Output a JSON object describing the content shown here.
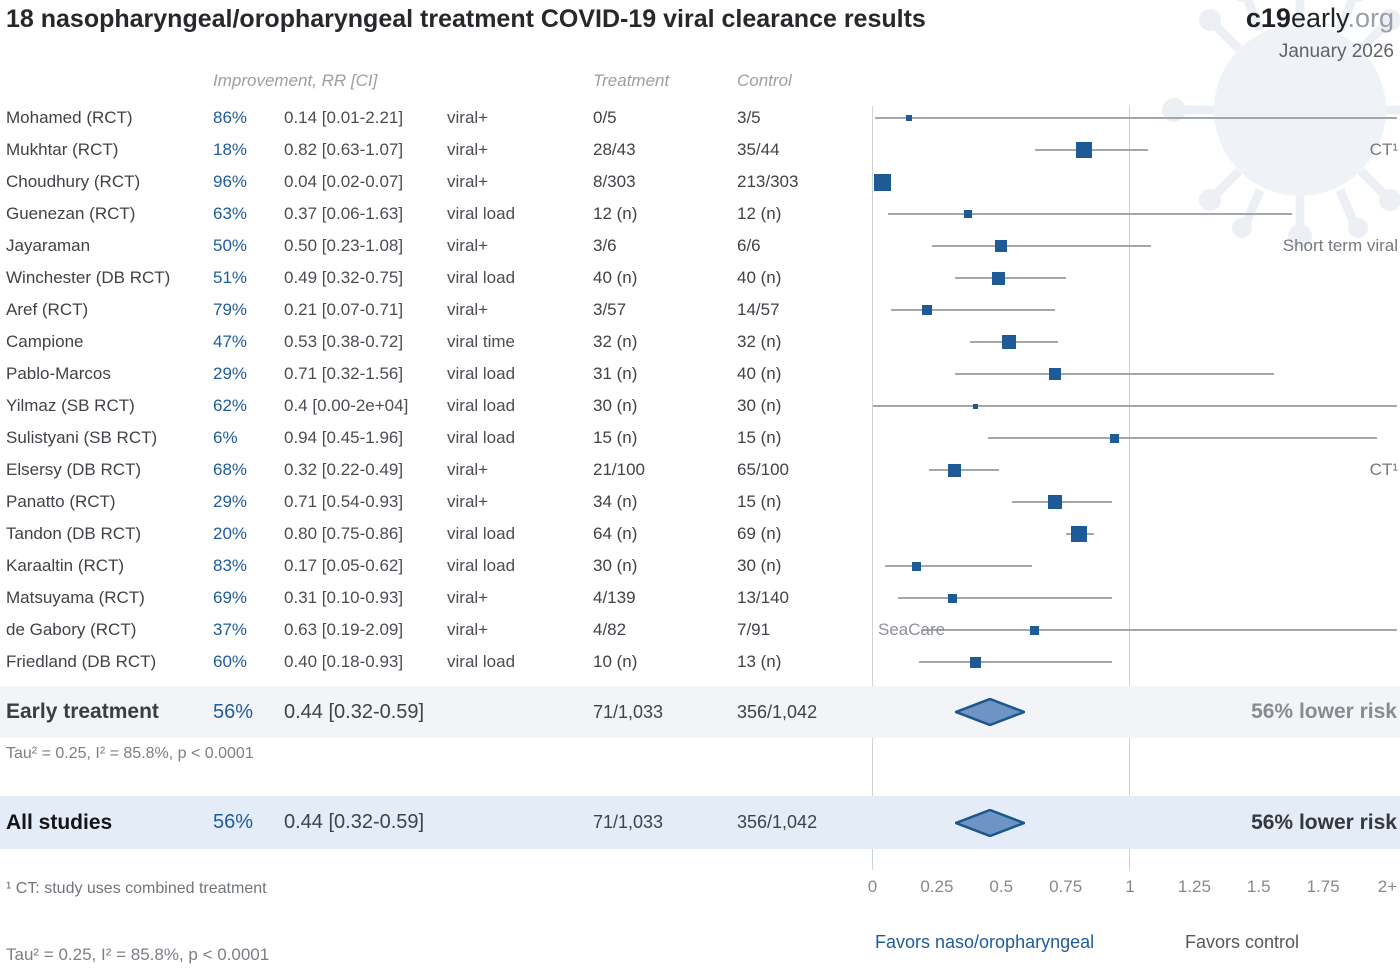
{
  "header": {
    "title": "18 nasopharyngeal/oropharyngeal treatment COVID-19 viral clearance results",
    "logo_bold": "c19",
    "logo_mid": "early",
    "logo_suffix": ".org",
    "date": "January 2026"
  },
  "columns": {
    "improvement": "Improvement, RR [CI]",
    "treatment": "Treatment",
    "control": "Control"
  },
  "chart_data": {
    "type": "forest",
    "x_axis": {
      "ticks": [
        "0",
        "0.25",
        "0.5",
        "0.75",
        "1",
        "1.25",
        "1.5",
        "1.75",
        "2+"
      ],
      "values": [
        0,
        0.25,
        0.5,
        0.75,
        1,
        1.25,
        1.5,
        1.75,
        2
      ],
      "xlim": [
        0,
        2.04
      ],
      "reference_lines": [
        0,
        1
      ]
    },
    "studies": [
      {
        "name": "Mohamed (RCT)",
        "improvement": "86%",
        "rr": "0.14 [0.01-2.21]",
        "outcome": "viral+",
        "treatment": "0/5",
        "control": "3/5",
        "rr_val": 0.14,
        "ci": [
          0.01,
          2.21
        ],
        "marker_size": 6
      },
      {
        "name": "Mukhtar (RCT)",
        "improvement": "18%",
        "rr": "0.82 [0.63-1.07]",
        "outcome": "viral+",
        "treatment": "28/43",
        "control": "35/44",
        "rr_val": 0.82,
        "ci": [
          0.63,
          1.07
        ],
        "marker_size": 16,
        "note": "CT¹",
        "note_side": "right"
      },
      {
        "name": "Choudhury (RCT)",
        "improvement": "96%",
        "rr": "0.04 [0.02-0.07]",
        "outcome": "viral+",
        "treatment": "8/303",
        "control": "213/303",
        "rr_val": 0.04,
        "ci": [
          0.02,
          0.07
        ],
        "marker_size": 17
      },
      {
        "name": "Guenezan (RCT)",
        "improvement": "63%",
        "rr": "0.37 [0.06-1.63]",
        "outcome": "viral load",
        "treatment": "12 (n)",
        "control": "12 (n)",
        "rr_val": 0.37,
        "ci": [
          0.06,
          1.63
        ],
        "marker_size": 8
      },
      {
        "name": "Jayaraman",
        "improvement": "50%",
        "rr": "0.50 [0.23-1.08]",
        "outcome": "viral+",
        "treatment": "3/6",
        "control": "6/6",
        "rr_val": 0.5,
        "ci": [
          0.23,
          1.08
        ],
        "marker_size": 12,
        "note": "Short term viral",
        "note_side": "right"
      },
      {
        "name": "Winchester (DB RCT)",
        "improvement": "51%",
        "rr": "0.49 [0.32-0.75]",
        "outcome": "viral load",
        "treatment": "40 (n)",
        "control": "40 (n)",
        "rr_val": 0.49,
        "ci": [
          0.32,
          0.75
        ],
        "marker_size": 13
      },
      {
        "name": "Aref (RCT)",
        "improvement": "79%",
        "rr": "0.21 [0.07-0.71]",
        "outcome": "viral+",
        "treatment": "3/57",
        "control": "14/57",
        "rr_val": 0.21,
        "ci": [
          0.07,
          0.71
        ],
        "marker_size": 10
      },
      {
        "name": "Campione",
        "improvement": "47%",
        "rr": "0.53 [0.38-0.72]",
        "outcome": "viral time",
        "treatment": "32 (n)",
        "control": "32 (n)",
        "rr_val": 0.53,
        "ci": [
          0.38,
          0.72
        ],
        "marker_size": 14
      },
      {
        "name": "Pablo-Marcos",
        "improvement": "29%",
        "rr": "0.71 [0.32-1.56]",
        "outcome": "viral load",
        "treatment": "31 (n)",
        "control": "40 (n)",
        "rr_val": 0.71,
        "ci": [
          0.32,
          1.56
        ],
        "marker_size": 12
      },
      {
        "name": "Yilmaz (SB RCT)",
        "improvement": "62%",
        "rr": "0.4 [0.00-2e+04]",
        "outcome": "viral load",
        "treatment": "30 (n)",
        "control": "30 (n)",
        "rr_val": 0.4,
        "ci": [
          0.0,
          20000
        ],
        "marker_size": 5
      },
      {
        "name": "Sulistyani (SB RCT)",
        "improvement": "6%",
        "rr": "0.94 [0.45-1.96]",
        "outcome": "viral load",
        "treatment": "15 (n)",
        "control": "15 (n)",
        "rr_val": 0.94,
        "ci": [
          0.45,
          1.96
        ],
        "marker_size": 9
      },
      {
        "name": "Elsersy (DB RCT)",
        "improvement": "68%",
        "rr": "0.32 [0.22-0.49]",
        "outcome": "viral+",
        "treatment": "21/100",
        "control": "65/100",
        "rr_val": 0.32,
        "ci": [
          0.22,
          0.49
        ],
        "marker_size": 13,
        "note": "CT¹",
        "note_side": "right"
      },
      {
        "name": "Panatto (RCT)",
        "improvement": "29%",
        "rr": "0.71 [0.54-0.93]",
        "outcome": "viral+",
        "treatment": "34 (n)",
        "control": "15 (n)",
        "rr_val": 0.71,
        "ci": [
          0.54,
          0.93
        ],
        "marker_size": 14
      },
      {
        "name": "Tandon (DB RCT)",
        "improvement": "20%",
        "rr": "0.80 [0.75-0.86]",
        "outcome": "viral load",
        "treatment": "64 (n)",
        "control": "69 (n)",
        "rr_val": 0.8,
        "ci": [
          0.75,
          0.86
        ],
        "marker_size": 16
      },
      {
        "name": "Karaaltin (RCT)",
        "improvement": "83%",
        "rr": "0.17 [0.05-0.62]",
        "outcome": "viral load",
        "treatment": "30 (n)",
        "control": "30 (n)",
        "rr_val": 0.17,
        "ci": [
          0.05,
          0.62
        ],
        "marker_size": 9
      },
      {
        "name": "Matsuyama (RCT)",
        "improvement": "69%",
        "rr": "0.31 [0.10-0.93]",
        "outcome": "viral+",
        "treatment": "4/139",
        "control": "13/140",
        "rr_val": 0.31,
        "ci": [
          0.1,
          0.93
        ],
        "marker_size": 9
      },
      {
        "name": "de Gabory (RCT)",
        "improvement": "37%",
        "rr": "0.63 [0.19-2.09]",
        "outcome": "viral+",
        "treatment": "4/82",
        "control": "7/91",
        "rr_val": 0.63,
        "ci": [
          0.19,
          2.09
        ],
        "marker_size": 9,
        "note": "SeaCare",
        "note_side": "left"
      },
      {
        "name": "Friedland (DB RCT)",
        "improvement": "60%",
        "rr": "0.40 [0.18-0.93]",
        "outcome": "viral load",
        "treatment": "10 (n)",
        "control": "13 (n)",
        "rr_val": 0.4,
        "ci": [
          0.18,
          0.93
        ],
        "marker_size": 11
      }
    ],
    "summaries": [
      {
        "label": "Early treatment",
        "improvement": "56%",
        "rr": "0.44 [0.32-0.59]",
        "treatment": "71/1,033",
        "control": "356/1,042",
        "effect": "56% lower risk",
        "rr_val": 0.44,
        "ci": [
          0.32,
          0.59
        ]
      },
      {
        "label": "All studies",
        "improvement": "56%",
        "rr": "0.44 [0.32-0.59]",
        "treatment": "71/1,033",
        "control": "356/1,042",
        "effect": "56% lower risk",
        "rr_val": 0.44,
        "ci": [
          0.32,
          0.59
        ]
      }
    ],
    "heterogeneity": "Tau² = 0.25, I² = 85.8%, p < 0.0001",
    "footnote": "¹ CT: study uses combined treatment",
    "favors_left": "Favors naso/oropharyngeal",
    "favors_right": "Favors control"
  },
  "colors": {
    "accent_blue": "#1e5c9e",
    "marker_blue": "#1e5a96",
    "diamond_fill": "#6d94c3",
    "band_early": "#f2f4f7",
    "band_all": "#e3ecf7",
    "ci_line": "#a2a8af",
    "gridline": "#cdd2d7"
  }
}
